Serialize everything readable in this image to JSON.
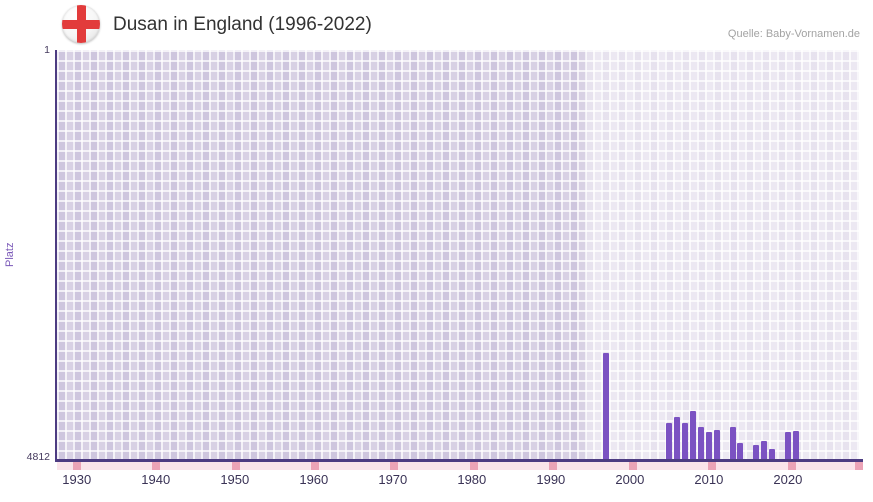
{
  "header": {
    "title": "Dusan in England (1996-2022)",
    "source": "Quelle: Baby-Vornamen.de"
  },
  "flag": {
    "kind": "england-st-george-cross",
    "cross_color": "#e23b3b",
    "background_color": "#ffffff"
  },
  "chart_data": {
    "type": "bar",
    "title": "Dusan in England (1996-2022)",
    "ylabel": "Platz",
    "y_axis": {
      "top_label": "1",
      "bottom_label": "4812",
      "min": 1,
      "max": 4812,
      "inverted": true
    },
    "x_axis": {
      "ticks": [
        1930,
        1940,
        1950,
        1960,
        1970,
        1980,
        1990,
        2000,
        2010,
        2020
      ],
      "domain_min": 1927.5,
      "domain_max": 2029
    },
    "highlight_period": {
      "start": 1994.5,
      "end": 2029
    },
    "bars": [
      {
        "year": 1997,
        "rank": 3560
      },
      {
        "year": 2005,
        "rank": 4390
      },
      {
        "year": 2006,
        "rank": 4320
      },
      {
        "year": 2007,
        "rank": 4390
      },
      {
        "year": 2008,
        "rank": 4250
      },
      {
        "year": 2009,
        "rank": 4440
      },
      {
        "year": 2010,
        "rank": 4490
      },
      {
        "year": 2011,
        "rank": 4470
      },
      {
        "year": 2013,
        "rank": 4430
      },
      {
        "year": 2014,
        "rank": 4620
      },
      {
        "year": 2016,
        "rank": 4650
      },
      {
        "year": 2017,
        "rank": 4600
      },
      {
        "year": 2018,
        "rank": 4690
      },
      {
        "year": 2020,
        "rank": 4500
      },
      {
        "year": 2021,
        "rank": 4480
      }
    ],
    "no_data_marks": [
      1930,
      1940,
      1950,
      1960,
      1970,
      1980,
      1990,
      2000,
      2010,
      2020
    ],
    "colors": {
      "bar": "#7b52c2",
      "plot_background": "#d8d1e4",
      "highlight_overlay": "rgba(255,255,255,0.5)",
      "axis": "#4d3c82",
      "band": "#fae4ea",
      "band_mark": "#eba3b6",
      "axis_label": "#7a58b8"
    }
  }
}
